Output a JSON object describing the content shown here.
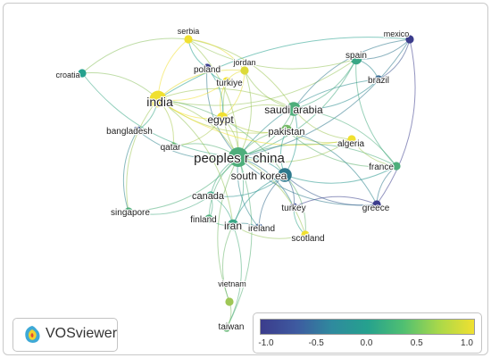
{
  "colors": {
    "low": "#3b3c8c",
    "mid": "#25a18e",
    "high": "#f0e030"
  },
  "nodes": [
    {
      "id": "serbia",
      "label": "serbia",
      "score": 1.0,
      "weight": 1
    },
    {
      "id": "mexico",
      "label": "mexico",
      "score": -1.0,
      "weight": 1
    },
    {
      "id": "jordan",
      "label": "jordan",
      "score": 0.9,
      "weight": 1
    },
    {
      "id": "spain",
      "label": "spain",
      "score": 0.1,
      "weight": 2
    },
    {
      "id": "croatia",
      "label": "croatia",
      "score": 0.0,
      "weight": 1
    },
    {
      "id": "poland",
      "label": "poland",
      "score": -1.0,
      "weight": 1
    },
    {
      "id": "turkiye",
      "label": "turkiye",
      "score": 1.0,
      "weight": 1
    },
    {
      "id": "brazil",
      "label": "brazil",
      "score": -0.6,
      "weight": 1
    },
    {
      "id": "india",
      "label": "india",
      "score": 1.0,
      "weight": 4
    },
    {
      "id": "egypt",
      "label": "egypt",
      "score": 1.0,
      "weight": 2
    },
    {
      "id": "saudi-arabia",
      "label": "saudi arabia",
      "score": 0.2,
      "weight": 3
    },
    {
      "id": "bangladesh",
      "label": "bangladesh",
      "score": -0.8,
      "weight": 1
    },
    {
      "id": "pakistan",
      "label": "pakistan",
      "score": 0.4,
      "weight": 2
    },
    {
      "id": "algeria",
      "label": "algeria",
      "score": 1.0,
      "weight": 1
    },
    {
      "id": "qatar",
      "label": "qatar",
      "score": 0.3,
      "weight": 1
    },
    {
      "id": "peoples-r-china",
      "label": "peoples r china",
      "score": 0.2,
      "weight": 5
    },
    {
      "id": "france",
      "label": "france",
      "score": 0.2,
      "weight": 1
    },
    {
      "id": "south-korea",
      "label": "south korea",
      "score": -0.4,
      "weight": 3
    },
    {
      "id": "canada",
      "label": "canada",
      "score": 0.1,
      "weight": 1
    },
    {
      "id": "turkey",
      "label": "turkey",
      "score": -0.9,
      "weight": 1
    },
    {
      "id": "greece",
      "label": "greece",
      "score": -1.0,
      "weight": 1
    },
    {
      "id": "singapore",
      "label": "singapore",
      "score": 0.2,
      "weight": 1
    },
    {
      "id": "finland",
      "label": "finland",
      "score": 0.2,
      "weight": 1
    },
    {
      "id": "iran",
      "label": "iran",
      "score": 0.1,
      "weight": 2
    },
    {
      "id": "ireland",
      "label": "ireland",
      "score": -0.7,
      "weight": 1
    },
    {
      "id": "scotland",
      "label": "scotland",
      "score": 1.0,
      "weight": 1
    },
    {
      "id": "vietnam",
      "label": "vietnam",
      "score": 0.6,
      "weight": 1
    },
    {
      "id": "taiwan",
      "label": "taiwan",
      "score": 0.3,
      "weight": 1
    }
  ],
  "links": [
    [
      "peoples-r-china",
      "india"
    ],
    [
      "peoples-r-china",
      "south-korea"
    ],
    [
      "peoples-r-china",
      "saudi-arabia"
    ],
    [
      "peoples-r-china",
      "pakistan"
    ],
    [
      "peoples-r-china",
      "egypt"
    ],
    [
      "peoples-r-china",
      "iran"
    ],
    [
      "peoples-r-china",
      "canada"
    ],
    [
      "peoples-r-china",
      "singapore"
    ],
    [
      "peoples-r-china",
      "finland"
    ],
    [
      "peoples-r-china",
      "taiwan"
    ],
    [
      "peoples-r-china",
      "vietnam"
    ],
    [
      "peoples-r-china",
      "france"
    ],
    [
      "peoples-r-china",
      "spain"
    ],
    [
      "peoples-r-china",
      "brazil"
    ],
    [
      "peoples-r-china",
      "mexico"
    ],
    [
      "peoples-r-china",
      "bangladesh"
    ],
    [
      "peoples-r-china",
      "qatar"
    ],
    [
      "peoples-r-china",
      "poland"
    ],
    [
      "peoples-r-china",
      "greece"
    ],
    [
      "peoples-r-china",
      "turkey"
    ],
    [
      "peoples-r-china",
      "algeria"
    ],
    [
      "peoples-r-china",
      "croatia"
    ],
    [
      "peoples-r-china",
      "serbia"
    ],
    [
      "peoples-r-china",
      "turkiye"
    ],
    [
      "peoples-r-china",
      "jordan"
    ],
    [
      "peoples-r-china",
      "scotland"
    ],
    [
      "peoples-r-china",
      "ireland"
    ],
    [
      "india",
      "saudi-arabia"
    ],
    [
      "india",
      "egypt"
    ],
    [
      "india",
      "serbia"
    ],
    [
      "india",
      "croatia"
    ],
    [
      "india",
      "bangladesh"
    ],
    [
      "india",
      "pakistan"
    ],
    [
      "india",
      "south-korea"
    ],
    [
      "india",
      "spain"
    ],
    [
      "india",
      "jordan"
    ],
    [
      "india",
      "turkiye"
    ],
    [
      "india",
      "qatar"
    ],
    [
      "india",
      "singapore"
    ],
    [
      "india",
      "iran"
    ],
    [
      "india",
      "algeria"
    ],
    [
      "india",
      "mexico"
    ],
    [
      "saudi-arabia",
      "egypt"
    ],
    [
      "saudi-arabia",
      "pakistan"
    ],
    [
      "saudi-arabia",
      "spain"
    ],
    [
      "saudi-arabia",
      "jordan"
    ],
    [
      "saudi-arabia",
      "algeria"
    ],
    [
      "saudi-arabia",
      "south-korea"
    ],
    [
      "saudi-arabia",
      "brazil"
    ],
    [
      "saudi-arabia",
      "mexico"
    ],
    [
      "saudi-arabia",
      "serbia"
    ],
    [
      "saudi-arabia",
      "france"
    ],
    [
      "south-korea",
      "greece"
    ],
    [
      "south-korea",
      "turkey"
    ],
    [
      "south-korea",
      "france"
    ],
    [
      "south-korea",
      "canada"
    ],
    [
      "south-korea",
      "iran"
    ],
    [
      "south-korea",
      "scotland"
    ],
    [
      "south-korea",
      "ireland"
    ],
    [
      "south-korea",
      "pakistan"
    ],
    [
      "pakistan",
      "algeria"
    ],
    [
      "pakistan",
      "egypt"
    ],
    [
      "pakistan",
      "france"
    ],
    [
      "pakistan",
      "greece"
    ],
    [
      "spain",
      "mexico"
    ],
    [
      "spain",
      "brazil"
    ],
    [
      "spain",
      "france"
    ],
    [
      "spain",
      "serbia"
    ],
    [
      "brazil",
      "mexico"
    ],
    [
      "iran",
      "finland"
    ],
    [
      "iran",
      "canada"
    ],
    [
      "iran",
      "taiwan"
    ],
    [
      "iran",
      "vietnam"
    ],
    [
      "iran",
      "ireland"
    ],
    [
      "iran",
      "scotland"
    ],
    [
      "egypt",
      "turkiye"
    ],
    [
      "egypt",
      "jordan"
    ],
    [
      "egypt",
      "qatar"
    ],
    [
      "egypt",
      "poland"
    ],
    [
      "poland",
      "serbia"
    ],
    [
      "poland",
      "turkiye"
    ],
    [
      "turkey",
      "greece"
    ],
    [
      "turkey",
      "scotland"
    ],
    [
      "greece",
      "france"
    ],
    [
      "greece",
      "mexico"
    ],
    [
      "singapore",
      "bangladesh"
    ],
    [
      "singapore",
      "canada"
    ],
    [
      "croatia",
      "serbia"
    ],
    [
      "jordan",
      "serbia"
    ],
    [
      "turkiye",
      "jordan"
    ],
    [
      "finland",
      "canada"
    ],
    [
      "vietnam",
      "taiwan"
    ],
    [
      "algeria",
      "france"
    ]
  ],
  "logo": {
    "text": "VOSviewer"
  },
  "colorbar": {
    "min": -1.0,
    "max": 1.0,
    "ticks": [
      {
        "value": -1.0,
        "label": "-1.0"
      },
      {
        "value": -0.5,
        "label": "-0.5"
      },
      {
        "value": 0.0,
        "label": "0.0"
      },
      {
        "value": 0.5,
        "label": "0.5"
      },
      {
        "value": 1.0,
        "label": "1.0"
      }
    ]
  }
}
